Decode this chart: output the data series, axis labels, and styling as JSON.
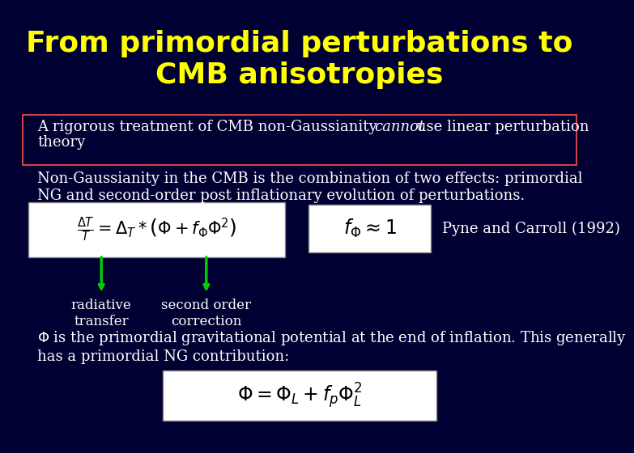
{
  "bg_color": "#000033",
  "title_color": "#FFFF00",
  "title_text": "From primordial perturbations to\nCMB anisotropies",
  "title_fontsize": 26,
  "box_color": "#FFFFFF",
  "box_edge_color": "#CC4444",
  "para1": "Non-Gaussianity in the CMB is the combination of two effects: primordial\nNG and second-order post inflationary evolution of perturbations.",
  "para1_color": "#FFFFFF",
  "pyne_text": "Pyne and Carroll (1992)",
  "pyne_color": "#FFFFFF",
  "arrow_color": "#00CC00",
  "label1": "radiative\ntransfer",
  "label2": "second order\ncorrection",
  "label_color": "#FFFFFF",
  "white_text": "#FFFFFF",
  "font_size_body": 13,
  "font_size_label": 12
}
